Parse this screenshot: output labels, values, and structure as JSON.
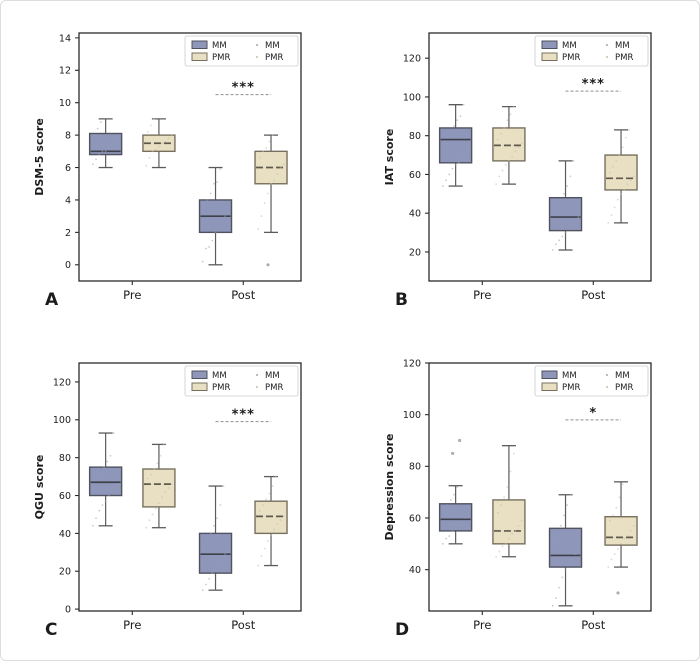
{
  "figure": {
    "background": "#ffffff",
    "border_color": "#dddddd",
    "description": "Four boxplot panels comparing MM and PMR groups Pre and Post intervention"
  },
  "colors": {
    "mm_fill": "#8e96b9",
    "pmr_fill": "#e9e0c4",
    "mm_edge": "#50535f",
    "pmr_edge": "#77705e",
    "mm_median": "#3e404a",
    "pmr_median": "#5f594b",
    "whisker": "#5b5b5b",
    "strip_mm": "#9aa1b8",
    "strip_pmr": "#c6bca0",
    "outlier": "#9a9a9a",
    "sig_line": "#8f8f8f",
    "sig_star": "#111111",
    "axis": "#2b2b2b",
    "legend_border": "#cccccc"
  },
  "legend": {
    "box_items": [
      {
        "label": "MM",
        "color_key": "mm_fill",
        "edge_key": "mm_edge"
      },
      {
        "label": "PMR",
        "color_key": "pmr_fill",
        "edge_key": "pmr_edge"
      }
    ],
    "point_items": [
      {
        "label": "MM",
        "color_key": "strip_mm"
      },
      {
        "label": "PMR",
        "color_key": "strip_pmr"
      }
    ]
  },
  "chart_data": [
    {
      "panel_label": "A",
      "type": "boxplot",
      "ylabel": "DSM-5 score",
      "ylim": [
        -1,
        14.3
      ],
      "yticks": [
        0,
        2,
        4,
        6,
        8,
        10,
        12,
        14
      ],
      "categories": [
        "Pre",
        "Post"
      ],
      "groups": [
        "MM",
        "PMR"
      ],
      "boxes": [
        {
          "category": "Pre",
          "group": "MM",
          "whislo": 6,
          "q1": 6.8,
          "med": 7,
          "q3": 8.1,
          "whishi": 9,
          "outliers": [],
          "points": [
            6.2,
            6.5,
            6.8,
            7,
            7,
            7.2,
            7.4,
            7.6,
            7.9,
            8,
            8.4,
            8.8
          ]
        },
        {
          "category": "Pre",
          "group": "PMR",
          "whislo": 6,
          "q1": 7,
          "med": 7.5,
          "q3": 8,
          "whishi": 9,
          "outliers": [],
          "points": [
            6.1,
            6.6,
            7,
            7.1,
            7.3,
            7.5,
            7.6,
            7.8,
            8,
            8.2,
            8.6,
            9
          ]
        },
        {
          "category": "Post",
          "group": "MM",
          "whislo": 0,
          "q1": 2,
          "med": 3,
          "q3": 4,
          "whishi": 6,
          "outliers": [],
          "points": [
            0.2,
            1,
            1.1,
            1.5,
            2,
            2.3,
            2.6,
            3,
            3.2,
            3.6,
            4,
            4.4,
            5,
            5.1,
            5.9
          ]
        },
        {
          "category": "Post",
          "group": "PMR",
          "whislo": 2,
          "q1": 5,
          "med": 6,
          "q3": 7,
          "whishi": 8,
          "outliers": [
            0
          ],
          "points": [
            2.2,
            3,
            3.8,
            4.4,
            5,
            5.2,
            5.6,
            6,
            6.2,
            6.6,
            7,
            7.2,
            7.6,
            8
          ]
        }
      ],
      "significance": {
        "label": "***",
        "pair": [
          "Post-MM",
          "Post-PMR"
        ],
        "y": 10.5
      }
    },
    {
      "panel_label": "B",
      "type": "boxplot",
      "ylabel": "IAT score",
      "ylim": [
        5,
        133
      ],
      "yticks": [
        20,
        40,
        60,
        80,
        100,
        120
      ],
      "categories": [
        "Pre",
        "Post"
      ],
      "groups": [
        "MM",
        "PMR"
      ],
      "boxes": [
        {
          "category": "Pre",
          "group": "MM",
          "whislo": 54,
          "q1": 66,
          "med": 78,
          "q3": 84,
          "whishi": 96,
          "outliers": [],
          "points": [
            54,
            57,
            60,
            63,
            65,
            66,
            68,
            71,
            74,
            77,
            79,
            82,
            85,
            88,
            90,
            96
          ]
        },
        {
          "category": "Pre",
          "group": "PMR",
          "whislo": 55,
          "q1": 67,
          "med": 75,
          "q3": 84,
          "whishi": 95,
          "outliers": [],
          "points": [
            55,
            59,
            62,
            65,
            67,
            69,
            72,
            74,
            76,
            78,
            81,
            84,
            88,
            91,
            95
          ]
        },
        {
          "category": "Post",
          "group": "MM",
          "whislo": 21,
          "q1": 31,
          "med": 38,
          "q3": 48,
          "whishi": 67,
          "outliers": [],
          "points": [
            21,
            24,
            26,
            28,
            30,
            32,
            34,
            36,
            38,
            41,
            44,
            47,
            50,
            54,
            59,
            67
          ]
        },
        {
          "category": "Post",
          "group": "PMR",
          "whislo": 35,
          "q1": 52,
          "med": 58,
          "q3": 70,
          "whishi": 83,
          "outliers": [],
          "points": [
            35,
            39,
            43,
            47,
            50,
            52,
            55,
            57,
            59,
            61,
            64,
            67,
            70,
            74,
            79,
            83
          ]
        }
      ],
      "significance": {
        "label": "***",
        "pair": [
          "Post-MM",
          "Post-PMR"
        ],
        "y": 103
      }
    },
    {
      "panel_label": "C",
      "type": "boxplot",
      "ylabel": "QGU score",
      "ylim": [
        -1,
        130
      ],
      "yticks": [
        0,
        20,
        40,
        60,
        80,
        100,
        120
      ],
      "categories": [
        "Pre",
        "Post"
      ],
      "groups": [
        "MM",
        "PMR"
      ],
      "boxes": [
        {
          "category": "Pre",
          "group": "MM",
          "whislo": 44,
          "q1": 60,
          "med": 67,
          "q3": 75,
          "whishi": 93,
          "outliers": [],
          "points": [
            44,
            48,
            52,
            55,
            57,
            60,
            62,
            64,
            66,
            68,
            70,
            72,
            75,
            78,
            81,
            93
          ]
        },
        {
          "category": "Pre",
          "group": "PMR",
          "whislo": 43,
          "q1": 54,
          "med": 66,
          "q3": 74,
          "whishi": 87,
          "outliers": [],
          "points": [
            43,
            47,
            50,
            53,
            56,
            59,
            62,
            64,
            66,
            69,
            71,
            74,
            77,
            81,
            87
          ]
        },
        {
          "category": "Post",
          "group": "MM",
          "whislo": 10,
          "q1": 19,
          "med": 29,
          "q3": 40,
          "whishi": 65,
          "outliers": [],
          "points": [
            10,
            13,
            16,
            19,
            21,
            24,
            27,
            29,
            31,
            34,
            37,
            40,
            44,
            48,
            55,
            65
          ]
        },
        {
          "category": "Post",
          "group": "PMR",
          "whislo": 23,
          "q1": 40,
          "med": 49,
          "q3": 57,
          "whishi": 70,
          "outliers": [],
          "points": [
            23,
            28,
            32,
            36,
            39,
            42,
            45,
            47,
            49,
            52,
            55,
            58,
            61,
            65,
            70
          ]
        }
      ],
      "significance": {
        "label": "***",
        "pair": [
          "Post-MM",
          "Post-PMR"
        ],
        "y": 99
      }
    },
    {
      "panel_label": "D",
      "type": "boxplot",
      "ylabel": "Depression score",
      "ylim": [
        24,
        120
      ],
      "yticks": [
        40,
        60,
        80,
        100,
        120
      ],
      "categories": [
        "Pre",
        "Post"
      ],
      "groups": [
        "MM",
        "PMR"
      ],
      "boxes": [
        {
          "category": "Pre",
          "group": "MM",
          "whislo": 50,
          "q1": 55,
          "med": 59.5,
          "q3": 65.5,
          "whishi": 72.5,
          "outliers": [
            85,
            90
          ],
          "points": [
            50,
            52,
            53,
            55,
            56,
            57,
            58,
            60,
            61,
            63,
            65,
            67,
            69,
            72
          ]
        },
        {
          "category": "Pre",
          "group": "PMR",
          "whislo": 45,
          "q1": 50,
          "med": 55,
          "q3": 67,
          "whishi": 88,
          "outliers": [],
          "points": [
            45,
            47,
            49,
            50,
            52,
            54,
            55,
            57,
            59,
            62,
            65,
            68,
            72,
            78,
            85
          ]
        },
        {
          "category": "Post",
          "group": "MM",
          "whislo": 26,
          "q1": 41,
          "med": 45.5,
          "q3": 56,
          "whishi": 69,
          "outliers": [],
          "points": [
            26,
            29,
            33,
            37,
            40,
            42,
            44,
            46,
            48,
            51,
            54,
            57,
            61,
            65,
            69
          ]
        },
        {
          "category": "Post",
          "group": "PMR",
          "whislo": 41,
          "q1": 49.5,
          "med": 52.5,
          "q3": 60.5,
          "whishi": 74,
          "outliers": [
            31
          ],
          "points": [
            41,
            44,
            46,
            48,
            50,
            52,
            53,
            55,
            57,
            59,
            61,
            64,
            68,
            73
          ]
        }
      ],
      "significance": {
        "label": "*",
        "pair": [
          "Post-MM",
          "Post-PMR"
        ],
        "y": 98
      }
    }
  ]
}
